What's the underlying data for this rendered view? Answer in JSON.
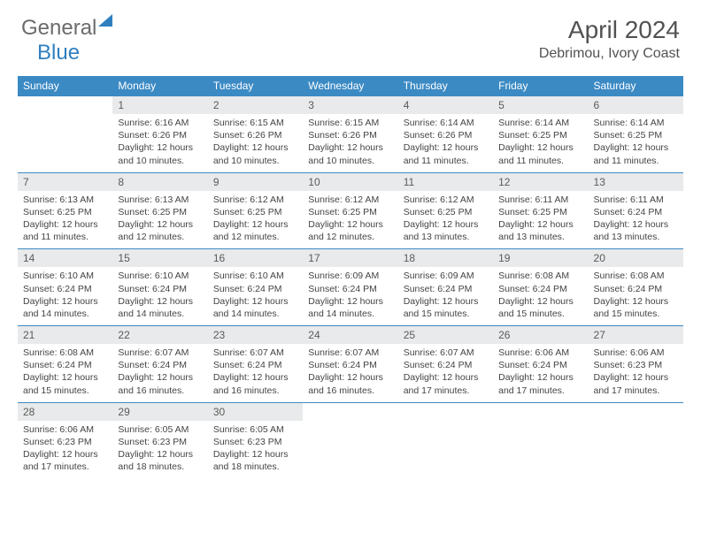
{
  "logo": {
    "text1": "General",
    "text2": "Blue"
  },
  "title": "April 2024",
  "location": "Debrimou, Ivory Coast",
  "colors": {
    "header_bg": "#3b8ac4",
    "header_text": "#ffffff",
    "daynum_bg": "#e9eaeb",
    "row_border": "#3b8ac4",
    "body_text": "#444444",
    "title_text": "#525252",
    "logo_gray": "#6b6b6b",
    "logo_blue": "#2f7fbf"
  },
  "weekdays": [
    "Sunday",
    "Monday",
    "Tuesday",
    "Wednesday",
    "Thursday",
    "Friday",
    "Saturday"
  ],
  "weeks": [
    [
      null,
      {
        "n": "1",
        "sr": "6:16 AM",
        "ss": "6:26 PM",
        "dl": "12 hours and 10 minutes."
      },
      {
        "n": "2",
        "sr": "6:15 AM",
        "ss": "6:26 PM",
        "dl": "12 hours and 10 minutes."
      },
      {
        "n": "3",
        "sr": "6:15 AM",
        "ss": "6:26 PM",
        "dl": "12 hours and 10 minutes."
      },
      {
        "n": "4",
        "sr": "6:14 AM",
        "ss": "6:26 PM",
        "dl": "12 hours and 11 minutes."
      },
      {
        "n": "5",
        "sr": "6:14 AM",
        "ss": "6:25 PM",
        "dl": "12 hours and 11 minutes."
      },
      {
        "n": "6",
        "sr": "6:14 AM",
        "ss": "6:25 PM",
        "dl": "12 hours and 11 minutes."
      }
    ],
    [
      {
        "n": "7",
        "sr": "6:13 AM",
        "ss": "6:25 PM",
        "dl": "12 hours and 11 minutes."
      },
      {
        "n": "8",
        "sr": "6:13 AM",
        "ss": "6:25 PM",
        "dl": "12 hours and 12 minutes."
      },
      {
        "n": "9",
        "sr": "6:12 AM",
        "ss": "6:25 PM",
        "dl": "12 hours and 12 minutes."
      },
      {
        "n": "10",
        "sr": "6:12 AM",
        "ss": "6:25 PM",
        "dl": "12 hours and 12 minutes."
      },
      {
        "n": "11",
        "sr": "6:12 AM",
        "ss": "6:25 PM",
        "dl": "12 hours and 13 minutes."
      },
      {
        "n": "12",
        "sr": "6:11 AM",
        "ss": "6:25 PM",
        "dl": "12 hours and 13 minutes."
      },
      {
        "n": "13",
        "sr": "6:11 AM",
        "ss": "6:24 PM",
        "dl": "12 hours and 13 minutes."
      }
    ],
    [
      {
        "n": "14",
        "sr": "6:10 AM",
        "ss": "6:24 PM",
        "dl": "12 hours and 14 minutes."
      },
      {
        "n": "15",
        "sr": "6:10 AM",
        "ss": "6:24 PM",
        "dl": "12 hours and 14 minutes."
      },
      {
        "n": "16",
        "sr": "6:10 AM",
        "ss": "6:24 PM",
        "dl": "12 hours and 14 minutes."
      },
      {
        "n": "17",
        "sr": "6:09 AM",
        "ss": "6:24 PM",
        "dl": "12 hours and 14 minutes."
      },
      {
        "n": "18",
        "sr": "6:09 AM",
        "ss": "6:24 PM",
        "dl": "12 hours and 15 minutes."
      },
      {
        "n": "19",
        "sr": "6:08 AM",
        "ss": "6:24 PM",
        "dl": "12 hours and 15 minutes."
      },
      {
        "n": "20",
        "sr": "6:08 AM",
        "ss": "6:24 PM",
        "dl": "12 hours and 15 minutes."
      }
    ],
    [
      {
        "n": "21",
        "sr": "6:08 AM",
        "ss": "6:24 PM",
        "dl": "12 hours and 15 minutes."
      },
      {
        "n": "22",
        "sr": "6:07 AM",
        "ss": "6:24 PM",
        "dl": "12 hours and 16 minutes."
      },
      {
        "n": "23",
        "sr": "6:07 AM",
        "ss": "6:24 PM",
        "dl": "12 hours and 16 minutes."
      },
      {
        "n": "24",
        "sr": "6:07 AM",
        "ss": "6:24 PM",
        "dl": "12 hours and 16 minutes."
      },
      {
        "n": "25",
        "sr": "6:07 AM",
        "ss": "6:24 PM",
        "dl": "12 hours and 17 minutes."
      },
      {
        "n": "26",
        "sr": "6:06 AM",
        "ss": "6:24 PM",
        "dl": "12 hours and 17 minutes."
      },
      {
        "n": "27",
        "sr": "6:06 AM",
        "ss": "6:23 PM",
        "dl": "12 hours and 17 minutes."
      }
    ],
    [
      {
        "n": "28",
        "sr": "6:06 AM",
        "ss": "6:23 PM",
        "dl": "12 hours and 17 minutes."
      },
      {
        "n": "29",
        "sr": "6:05 AM",
        "ss": "6:23 PM",
        "dl": "12 hours and 18 minutes."
      },
      {
        "n": "30",
        "sr": "6:05 AM",
        "ss": "6:23 PM",
        "dl": "12 hours and 18 minutes."
      },
      null,
      null,
      null,
      null
    ]
  ],
  "labels": {
    "sunrise": "Sunrise:",
    "sunset": "Sunset:",
    "daylight": "Daylight:"
  }
}
